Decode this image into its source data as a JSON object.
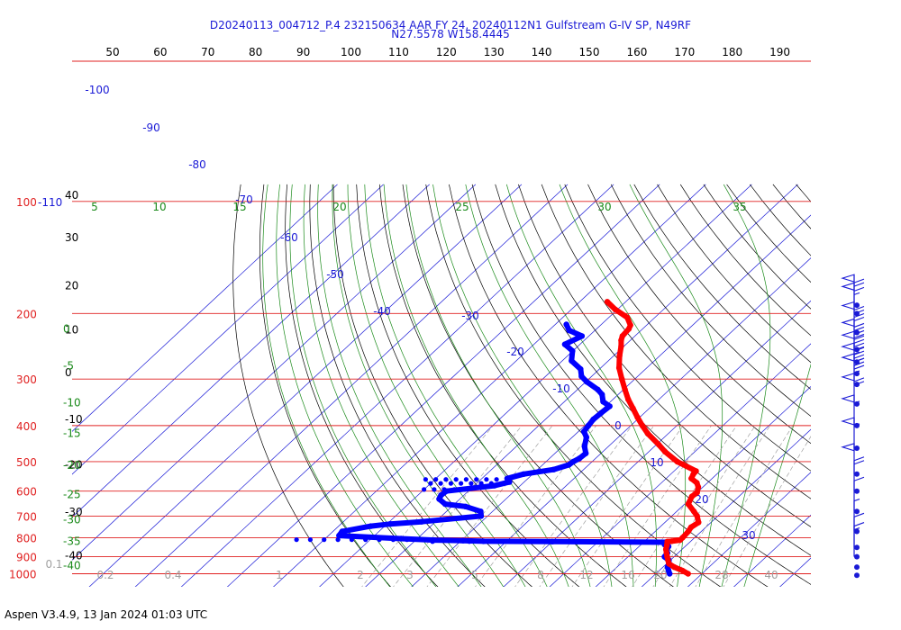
{
  "title": {
    "line1": "D20240113_004712_P.4 232150634 AAR FY 24, 20240112N1 Gulfstream G-IV SP, N49RF",
    "line2": "N27.5578 W158.4445"
  },
  "footer": "Aspen V3.4.9, 13 Jan 2024  01:03 UTC",
  "colors": {
    "isobar": "#e02020",
    "isotherm": "#1a1ad6",
    "dry_adiabat": "#000000",
    "moist_adiabat": "#1a8a1a",
    "mixing_ratio": "#a0a0a0",
    "temperature": "#ff0000",
    "dewpoint": "#0000ff",
    "wind_barb": "#1a1ad6"
  },
  "chart_data": {
    "type": "skew-t log-p sounding diagram",
    "pressure_levels": [
      {
        "p": 100,
        "label": "100"
      },
      {
        "p": 200,
        "label": "200"
      },
      {
        "p": 300,
        "label": "300"
      },
      {
        "p": 400,
        "label": "400"
      },
      {
        "p": 500,
        "label": "500"
      },
      {
        "p": 600,
        "label": "600"
      },
      {
        "p": 700,
        "label": "700"
      },
      {
        "p": 800,
        "label": "800"
      },
      {
        "p": 900,
        "label": "900"
      },
      {
        "p": 1000,
        "label": "1000"
      }
    ],
    "top_left_extra_label": "-110",
    "top_scale_labels": [
      "50",
      "60",
      "70",
      "80",
      "90",
      "100",
      "110",
      "120",
      "130",
      "140",
      "150",
      "160",
      "170",
      "180",
      "190"
    ],
    "left_scale_labels": [
      {
        "p": 100,
        "text": "40",
        "color": "black"
      },
      {
        "p": 130,
        "text": "30",
        "color": "black"
      },
      {
        "p": 175,
        "text": "20",
        "color": "black"
      },
      {
        "p": 230,
        "text": "10",
        "color": "black"
      },
      {
        "p": 300,
        "text": "0",
        "color": "black"
      },
      {
        "p": 400,
        "text": "-10",
        "color": "black"
      },
      {
        "p": 530,
        "text": "-20",
        "color": "black"
      },
      {
        "p": 710,
        "text": "-30",
        "color": "black"
      },
      {
        "p": 930,
        "text": "-40",
        "color": "black"
      },
      {
        "p": 215,
        "text": "0",
        "color": "green"
      },
      {
        "p": 270,
        "text": "-5",
        "color": "green"
      },
      {
        "p": 340,
        "text": "-10",
        "color": "green"
      },
      {
        "p": 410,
        "text": "-15",
        "color": "green"
      },
      {
        "p": 500,
        "text": "-20",
        "color": "green"
      },
      {
        "p": 600,
        "text": "-25",
        "color": "green"
      },
      {
        "p": 700,
        "text": "-30",
        "color": "green"
      },
      {
        "p": 800,
        "text": "-35",
        "color": "green"
      },
      {
        "p": 930,
        "text": "-40",
        "color": "green"
      }
    ],
    "moist_adiabat_top_labels": [
      "5",
      "10",
      "15",
      "20",
      "25",
      "30",
      "35"
    ],
    "isotherm_labels": [
      "-100",
      "-90",
      "-80",
      "-70",
      "-60",
      "-50",
      "-40",
      "-30",
      "-20",
      "-10",
      "0",
      "10",
      "20",
      "30"
    ],
    "mixing_ratio_labels": [
      "0.1",
      "0.2",
      "0.4",
      "1",
      "2",
      "3",
      "5",
      "8",
      "12",
      "16",
      "20",
      "28",
      "40"
    ],
    "temperature_profile": [
      [
        1000,
        27
      ],
      [
        980,
        25
      ],
      [
        960,
        22.5
      ],
      [
        940,
        20.5
      ],
      [
        920,
        19.5
      ],
      [
        900,
        18.5
      ],
      [
        880,
        17.5
      ],
      [
        860,
        16.5
      ],
      [
        840,
        15.8
      ],
      [
        820,
        15.0
      ],
      [
        818,
        15.8
      ],
      [
        812,
        17.4
      ],
      [
        800,
        17.4
      ],
      [
        770,
        17.2
      ],
      [
        750,
        16.8
      ],
      [
        728,
        17.3
      ],
      [
        700,
        15.5
      ],
      [
        680,
        13.7
      ],
      [
        650,
        10.8
      ],
      [
        620,
        9.8
      ],
      [
        605,
        10.0
      ],
      [
        585,
        9.0
      ],
      [
        570,
        7.7
      ],
      [
        555,
        5.5
      ],
      [
        540,
        4.9
      ],
      [
        530,
        4.8
      ],
      [
        500,
        -1.5
      ],
      [
        470,
        -6.5
      ],
      [
        450,
        -9.5
      ],
      [
        420,
        -14.5
      ],
      [
        400,
        -17.5
      ],
      [
        380,
        -20.5
      ],
      [
        360,
        -23.5
      ],
      [
        340,
        -26.7
      ],
      [
        320,
        -29.7
      ],
      [
        300,
        -32.8
      ],
      [
        280,
        -36.0
      ],
      [
        260,
        -38.7
      ],
      [
        245,
        -40.6
      ],
      [
        236,
        -42.0
      ],
      [
        230,
        -42.7
      ],
      [
        220,
        -43.0
      ],
      [
        215,
        -43.5
      ],
      [
        205,
        -46.0
      ],
      [
        195,
        -50.5
      ],
      [
        186,
        -54.0
      ]
    ],
    "dewpoint_profile": [
      [
        1000,
        23
      ],
      [
        980,
        22
      ],
      [
        960,
        21
      ],
      [
        940,
        20.5
      ],
      [
        920,
        19.7
      ],
      [
        900,
        17.9
      ],
      [
        880,
        17.7
      ],
      [
        860,
        16.6
      ],
      [
        845,
        16.4
      ],
      [
        835,
        15.1
      ],
      [
        823,
        14.8
      ],
      [
        820,
        -10
      ],
      [
        818,
        -25
      ],
      [
        815,
        -29.6
      ],
      [
        812,
        -36
      ],
      [
        805,
        -43.5
      ],
      [
        790,
        -57.7
      ],
      [
        770,
        -58
      ],
      [
        745,
        -53
      ],
      [
        735,
        -49.3
      ],
      [
        725,
        -43
      ],
      [
        700,
        -31.4
      ],
      [
        680,
        -32.6
      ],
      [
        660,
        -37.0
      ],
      [
        650,
        -42.0
      ],
      [
        630,
        -44.5
      ],
      [
        615,
        -45
      ],
      [
        600,
        -44.8
      ],
      [
        580,
        -35.6
      ],
      [
        567,
        -33.2
      ],
      [
        555,
        -34.5
      ],
      [
        540,
        -32.0
      ],
      [
        525,
        -26.5
      ],
      [
        510,
        -24.3
      ],
      [
        500,
        -24.1
      ],
      [
        490,
        -23.5
      ],
      [
        475,
        -23.3
      ],
      [
        455,
        -25.2
      ],
      [
        430,
        -26.9
      ],
      [
        415,
        -28.8
      ],
      [
        400,
        -29.2
      ],
      [
        385,
        -29.6
      ],
      [
        370,
        -29.4
      ],
      [
        355,
        -29.1
      ],
      [
        345,
        -31.6
      ],
      [
        330,
        -33.5
      ],
      [
        320,
        -35.6
      ],
      [
        305,
        -39.8
      ],
      [
        295,
        -42.2
      ],
      [
        282,
        -44.1
      ],
      [
        268,
        -48.0
      ],
      [
        252,
        -50.1
      ],
      [
        242,
        -53.3
      ],
      [
        230,
        -51.5
      ],
      [
        222,
        -55.6
      ],
      [
        214,
        -57.6
      ]
    ],
    "wind_barbs": [
      {
        "p": 190,
        "speed_kt": 70
      },
      {
        "p": 200,
        "speed_kt": 65
      },
      {
        "p": 225,
        "speed_kt": 90
      },
      {
        "p": 250,
        "speed_kt": 90
      },
      {
        "p": 270,
        "speed_kt": 95
      },
      {
        "p": 290,
        "speed_kt": 95
      },
      {
        "p": 310,
        "speed_kt": 85
      },
      {
        "p": 350,
        "speed_kt": 70
      },
      {
        "p": 400,
        "speed_kt": 55
      },
      {
        "p": 460,
        "speed_kt": 55
      },
      {
        "p": 540,
        "speed_kt": 50
      },
      {
        "p": 600,
        "speed_kt": 20
      },
      {
        "p": 680,
        "speed_kt": 10
      },
      {
        "p": 770,
        "speed_kt": 5
      },
      {
        "p": 850,
        "speed_kt": 10
      },
      {
        "p": 900,
        "speed_kt": 15
      },
      {
        "p": 960,
        "speed_kt": 0
      },
      {
        "p": 1010,
        "speed_kt": 0
      }
    ]
  }
}
